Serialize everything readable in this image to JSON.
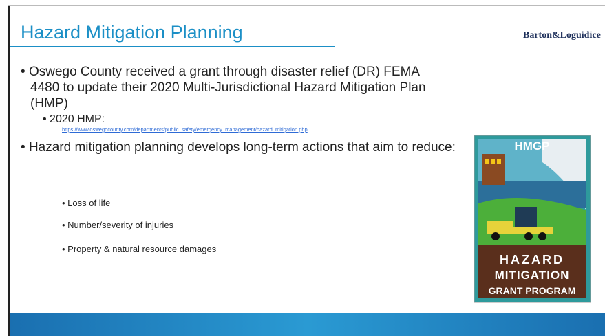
{
  "header": {
    "title": "Hazard Mitigation Planning",
    "logo": "Barton&Loguidice"
  },
  "bullets": [
    {
      "text": "Oswego County received a grant through disaster relief (DR) FEMA 4480 to update their 2020 Multi-Jurisdictional Hazard Mitigation Plan (HMP)",
      "children": [
        {
          "text": "2020 HMP:",
          "link": "https://www.oswegocounty.com/departments/public_safety/emergency_management/hazard_mitigation.php"
        }
      ]
    },
    {
      "text": "Hazard mitigation planning develops long-term actions that aim to reduce:",
      "children": [
        {
          "text": "Loss of life"
        },
        {
          "text": "Number/severity of injuries"
        },
        {
          "text": "Property & natural resource damages"
        }
      ]
    }
  ],
  "image": {
    "badge": "HMGP",
    "lines": [
      "HAZARD",
      "MITIGATION",
      "GRANT PROGRAM"
    ]
  }
}
